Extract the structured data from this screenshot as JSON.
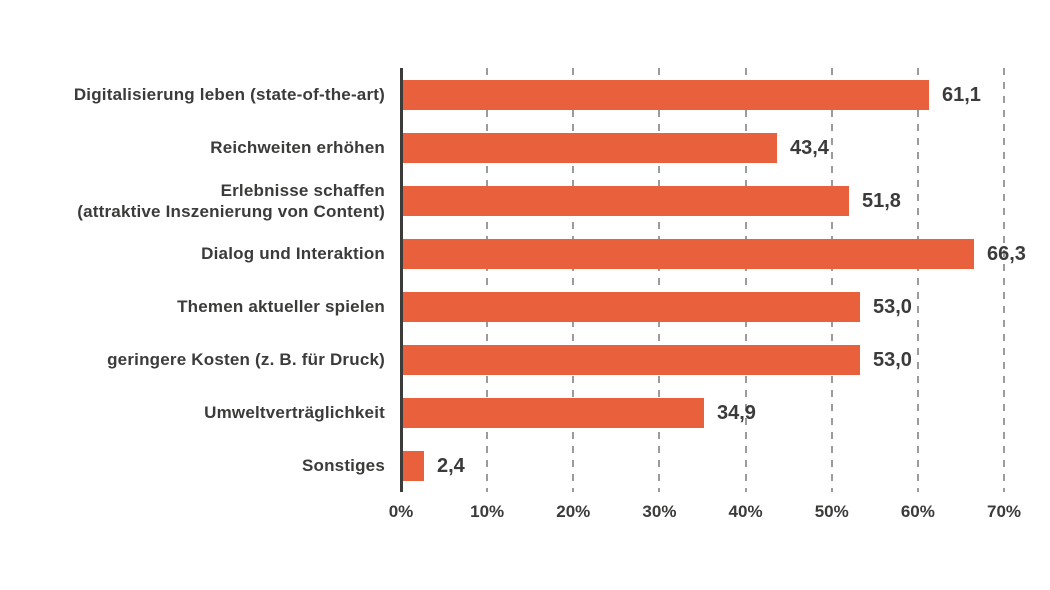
{
  "chart_data": {
    "type": "bar",
    "orientation": "horizontal",
    "title": "",
    "categories": [
      "Digitalisierung leben (state-of-the-art)",
      "Reichweiten erhöhen",
      "Erlebnisse schaffen\n(attraktive Inszenierung von Content)",
      "Dialog und Interaktion",
      "Themen aktueller spielen",
      "geringere Kosten (z. B. für Druck)",
      "Umweltverträglichkeit",
      "Sonstiges"
    ],
    "values": [
      61.1,
      43.4,
      51.8,
      66.3,
      53.0,
      53.0,
      34.9,
      2.4
    ],
    "value_labels": [
      "61,1",
      "43,4",
      "51,8",
      "66,3",
      "53,0",
      "53,0",
      "34,9",
      "2,4"
    ],
    "x_tick_labels": [
      "0%",
      "10%",
      "20%",
      "30%",
      "40%",
      "50%",
      "60%",
      "70%"
    ],
    "x_tick_values": [
      0,
      10,
      20,
      30,
      40,
      50,
      60,
      70
    ],
    "xlim": [
      0,
      70
    ],
    "xlabel": "",
    "ylabel": "",
    "grid": "dashed-vertical",
    "legend": "none",
    "bar_color": "#e8613c",
    "axis_color": "#3b3b3a",
    "gridline_color": "#9b9b9b",
    "text_color": "#3b3b3a"
  }
}
